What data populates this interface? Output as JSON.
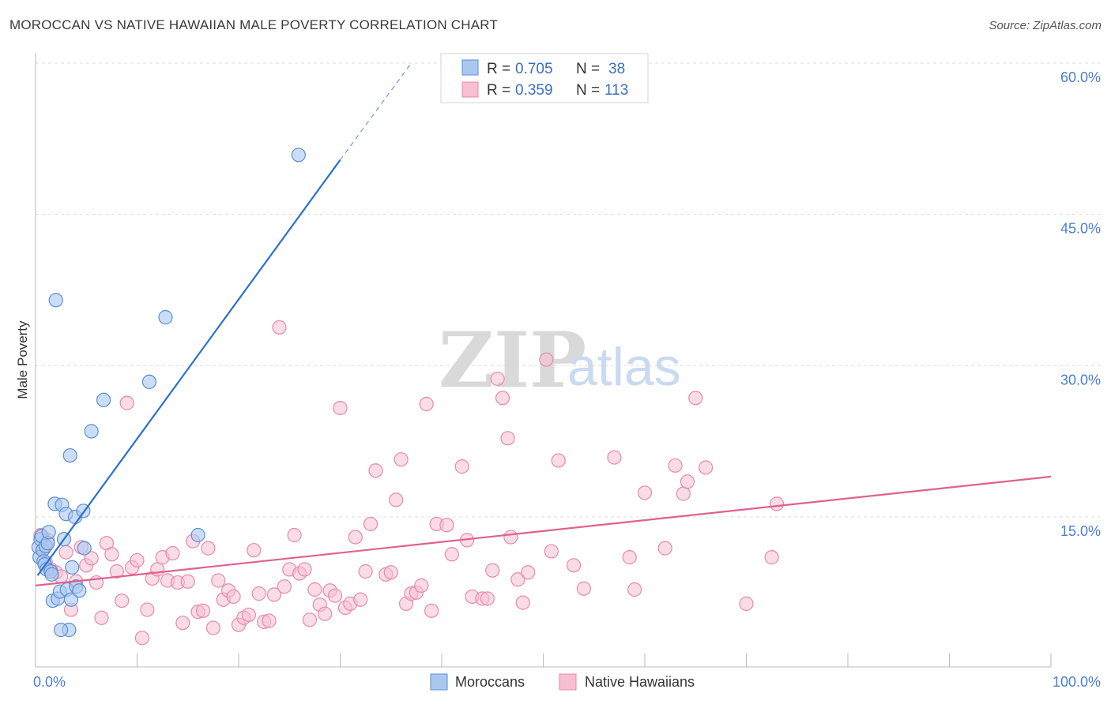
{
  "header": {
    "title": "MOROCCAN VS NATIVE HAWAIIAN MALE POVERTY CORRELATION CHART",
    "source": "Source: ZipAtlas.com"
  },
  "watermark": {
    "zip": "ZIP",
    "atlas": "atlas"
  },
  "legend_top": {
    "rows": [
      {
        "r_label": "R =",
        "r_value": "0.705",
        "n_label": "N =",
        "n_value": "38"
      },
      {
        "r_label": "R =",
        "r_value": "0.359",
        "n_label": "N =",
        "n_value": "113"
      }
    ]
  },
  "legend_bottom": {
    "items": [
      {
        "label": "Moroccans"
      },
      {
        "label": "Native Hawaiians"
      }
    ]
  },
  "colors": {
    "moroccans_fill": "#aac8ee",
    "moroccans_stroke": "#5a8fd6",
    "moroccans_line": "#2a6fd0",
    "hawaiians_fill": "#f6bfd2",
    "hawaiians_stroke": "#e889a9",
    "hawaiians_line": "#e0608e",
    "grid": "#dddddd",
    "tick_label": "#4a7fd4"
  },
  "chart_data": {
    "type": "scatter",
    "title": "MOROCCAN VS NATIVE HAWAIIAN MALE POVERTY CORRELATION CHART",
    "xlabel": "",
    "ylabel": "Male Poverty",
    "xlim": [
      0,
      100
    ],
    "ylim": [
      0,
      61
    ],
    "x_tick_labels": [
      "0.0%",
      "100.0%"
    ],
    "y_ticks": [
      15,
      30,
      45,
      60
    ],
    "y_tick_labels": [
      "15.0%",
      "30.0%",
      "45.0%",
      "60.0%"
    ],
    "series": [
      {
        "name": "Moroccans",
        "R": 0.705,
        "N": 38,
        "trend": {
          "x0": 0.2,
          "y0": 9.2,
          "x1": 30.0,
          "y1": 50.4,
          "dash_x1": 37.0,
          "dash_y1": 60.0
        },
        "points": [
          [
            0.3,
            12.0
          ],
          [
            0.4,
            11.0
          ],
          [
            0.5,
            12.8
          ],
          [
            0.6,
            13.1
          ],
          [
            0.7,
            11.7
          ],
          [
            0.8,
            10.6
          ],
          [
            0.9,
            10.3
          ],
          [
            1.0,
            12.1
          ],
          [
            1.1,
            9.8
          ],
          [
            1.2,
            12.4
          ],
          [
            1.3,
            13.5
          ],
          [
            1.5,
            9.6
          ],
          [
            1.6,
            9.3
          ],
          [
            1.7,
            6.7
          ],
          [
            1.9,
            16.3
          ],
          [
            2.0,
            36.5
          ],
          [
            2.2,
            6.9
          ],
          [
            2.4,
            7.6
          ],
          [
            2.6,
            16.2
          ],
          [
            2.8,
            12.8
          ],
          [
            3.0,
            15.3
          ],
          [
            3.1,
            7.8
          ],
          [
            3.3,
            3.8
          ],
          [
            3.4,
            21.1
          ],
          [
            3.5,
            6.8
          ],
          [
            3.6,
            10.0
          ],
          [
            3.9,
            15.0
          ],
          [
            4.0,
            8.1
          ],
          [
            4.3,
            7.7
          ],
          [
            4.7,
            15.6
          ],
          [
            4.8,
            11.9
          ],
          [
            5.5,
            23.5
          ],
          [
            6.7,
            26.6
          ],
          [
            11.2,
            28.4
          ],
          [
            12.8,
            34.8
          ],
          [
            16.0,
            13.2
          ],
          [
            2.5,
            3.8
          ],
          [
            25.9,
            50.9
          ]
        ]
      },
      {
        "name": "Native Hawaiians",
        "R": 0.359,
        "N": 113,
        "trend": {
          "x0": 0.0,
          "y0": 8.2,
          "x1": 100.0,
          "y1": 19.0
        },
        "points": [
          [
            0.5,
            13.2
          ],
          [
            0.8,
            11.8
          ],
          [
            1.0,
            10.5
          ],
          [
            1.2,
            12.7
          ],
          [
            1.5,
            9.8
          ],
          [
            2.0,
            9.5
          ],
          [
            2.5,
            9.1
          ],
          [
            3.0,
            11.5
          ],
          [
            3.5,
            5.8
          ],
          [
            4.0,
            8.6
          ],
          [
            4.5,
            12.0
          ],
          [
            5.0,
            10.2
          ],
          [
            5.5,
            10.9
          ],
          [
            6.0,
            8.5
          ],
          [
            6.5,
            5.0
          ],
          [
            7.0,
            12.4
          ],
          [
            7.5,
            11.3
          ],
          [
            8.0,
            9.6
          ],
          [
            8.5,
            6.7
          ],
          [
            9.0,
            26.3
          ],
          [
            9.5,
            10.0
          ],
          [
            10.0,
            10.7
          ],
          [
            10.5,
            3.0
          ],
          [
            11.0,
            5.8
          ],
          [
            11.5,
            8.9
          ],
          [
            12.0,
            9.8
          ],
          [
            12.5,
            11.0
          ],
          [
            13.0,
            8.7
          ],
          [
            13.5,
            11.4
          ],
          [
            14.0,
            8.5
          ],
          [
            14.5,
            4.5
          ],
          [
            15.0,
            8.6
          ],
          [
            15.5,
            12.6
          ],
          [
            16.0,
            5.6
          ],
          [
            16.5,
            5.7
          ],
          [
            17.0,
            11.9
          ],
          [
            17.5,
            4.0
          ],
          [
            18.0,
            8.7
          ],
          [
            18.5,
            6.8
          ],
          [
            19.0,
            7.7
          ],
          [
            19.5,
            7.1
          ],
          [
            20.0,
            4.3
          ],
          [
            20.5,
            5.0
          ],
          [
            21.0,
            5.3
          ],
          [
            21.5,
            11.7
          ],
          [
            22.0,
            7.4
          ],
          [
            22.5,
            4.6
          ],
          [
            23.0,
            4.7
          ],
          [
            23.5,
            7.3
          ],
          [
            24.0,
            33.8
          ],
          [
            24.5,
            8.1
          ],
          [
            25.0,
            9.8
          ],
          [
            25.5,
            13.2
          ],
          [
            26.0,
            9.4
          ],
          [
            26.5,
            9.8
          ],
          [
            27.0,
            4.8
          ],
          [
            27.5,
            7.8
          ],
          [
            28.0,
            6.3
          ],
          [
            28.5,
            5.4
          ],
          [
            29.0,
            7.7
          ],
          [
            29.5,
            7.2
          ],
          [
            30.0,
            25.8
          ],
          [
            30.5,
            6.0
          ],
          [
            31.0,
            6.4
          ],
          [
            31.5,
            13.0
          ],
          [
            32.0,
            6.8
          ],
          [
            32.5,
            9.6
          ],
          [
            33.0,
            14.3
          ],
          [
            33.5,
            19.6
          ],
          [
            34.5,
            9.3
          ],
          [
            35.0,
            9.5
          ],
          [
            35.5,
            16.7
          ],
          [
            36.0,
            20.7
          ],
          [
            36.5,
            6.4
          ],
          [
            37.0,
            7.4
          ],
          [
            37.5,
            7.5
          ],
          [
            38.0,
            8.2
          ],
          [
            38.5,
            26.2
          ],
          [
            39.0,
            5.7
          ],
          [
            39.5,
            14.3
          ],
          [
            40.5,
            14.2
          ],
          [
            41.0,
            11.3
          ],
          [
            42.0,
            20.0
          ],
          [
            42.5,
            12.7
          ],
          [
            43.0,
            7.1
          ],
          [
            44.0,
            6.9
          ],
          [
            44.5,
            6.9
          ],
          [
            45.0,
            9.7
          ],
          [
            45.5,
            28.7
          ],
          [
            46.0,
            26.8
          ],
          [
            46.5,
            22.8
          ],
          [
            46.8,
            13.0
          ],
          [
            47.5,
            8.8
          ],
          [
            48.0,
            6.5
          ],
          [
            48.5,
            9.5
          ],
          [
            50.3,
            30.6
          ],
          [
            50.8,
            11.6
          ],
          [
            51.5,
            20.6
          ],
          [
            53.0,
            10.2
          ],
          [
            54.0,
            7.9
          ],
          [
            57.0,
            20.9
          ],
          [
            58.5,
            11.0
          ],
          [
            59.0,
            7.8
          ],
          [
            60.0,
            17.4
          ],
          [
            62.0,
            11.9
          ],
          [
            63.0,
            20.1
          ],
          [
            63.8,
            17.3
          ],
          [
            64.2,
            18.5
          ],
          [
            65.0,
            26.8
          ],
          [
            66.0,
            19.9
          ],
          [
            70.0,
            6.4
          ],
          [
            72.5,
            11.0
          ],
          [
            73.0,
            16.3
          ]
        ]
      }
    ]
  }
}
